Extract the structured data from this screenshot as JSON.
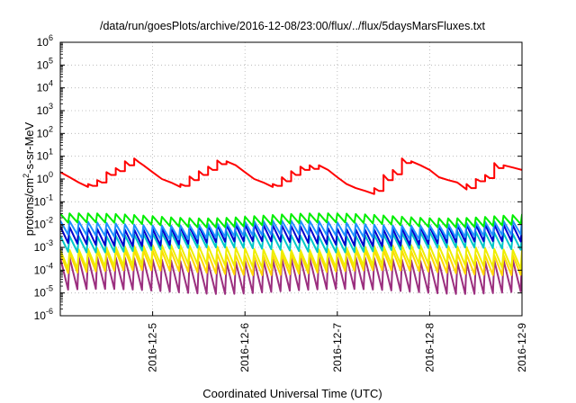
{
  "chart_data": {
    "type": "line",
    "title": "/data/run/goesPlots/archive/2016-12-08/23:00/flux/../flux/5daysMarsFluxes.txt",
    "xlabel": "Coordinated Universal Time (UTC)",
    "ylabel": "protons/cm2-s-sr-MeV",
    "ylabel_base": "protons/cm",
    "ylabel_sup": "2",
    "ylabel_rest": "-s-sr-MeV",
    "x_tick_labels": [
      "2016-12-5",
      "2016-12-6",
      "2016-12-7",
      "2016-12-8",
      "2016-12-9"
    ],
    "x_tick_positions_days": [
      1,
      2,
      3,
      4,
      5
    ],
    "xlim_days": [
      0,
      5
    ],
    "y_scale": "log",
    "ylim": [
      1e-06,
      1000000.0
    ],
    "y_ticks": [
      {
        "base": "10",
        "exp": "-6"
      },
      {
        "base": "10",
        "exp": "-5"
      },
      {
        "base": "10",
        "exp": "-4"
      },
      {
        "base": "10",
        "exp": "-3"
      },
      {
        "base": "10",
        "exp": "-2"
      },
      {
        "base": "10",
        "exp": "-1"
      },
      {
        "base": "10",
        "exp": "0"
      },
      {
        "base": "10",
        "exp": "1"
      },
      {
        "base": "10",
        "exp": "2"
      },
      {
        "base": "10",
        "exp": "3"
      },
      {
        "base": "10",
        "exp": "4"
      },
      {
        "base": "10",
        "exp": "5"
      },
      {
        "base": "10",
        "exp": "6"
      }
    ],
    "grid": true,
    "series": [
      {
        "color": "#ff0000",
        "x_days": [
          0.0,
          0.1,
          0.2,
          0.3,
          0.3,
          0.35,
          0.4,
          0.4,
          0.45,
          0.5,
          0.5,
          0.55,
          0.6,
          0.6,
          0.65,
          0.7,
          0.7,
          0.75,
          0.8,
          0.8,
          0.85,
          0.9,
          1.0,
          1.1,
          1.2,
          1.3,
          1.3,
          1.35,
          1.4,
          1.4,
          1.45,
          1.5,
          1.5,
          1.55,
          1.6,
          1.6,
          1.65,
          1.7,
          1.7,
          1.75,
          1.8,
          1.8,
          1.9,
          2.0,
          2.1,
          2.2,
          2.3,
          2.3,
          2.35,
          2.4,
          2.4,
          2.45,
          2.5,
          2.5,
          2.55,
          2.6,
          2.6,
          2.65,
          2.7,
          2.7,
          2.75,
          2.8,
          2.8,
          2.9,
          3.0,
          3.1,
          3.2,
          3.3,
          3.4,
          3.4,
          3.45,
          3.5,
          3.5,
          3.55,
          3.6,
          3.6,
          3.65,
          3.7,
          3.7,
          3.75,
          3.8,
          3.8,
          3.9,
          4.0,
          4.1,
          4.2,
          4.3,
          4.4,
          4.4,
          4.45,
          4.5,
          4.5,
          4.55,
          4.6,
          4.6,
          4.65,
          4.7,
          4.7,
          4.75,
          4.8,
          4.8,
          4.9,
          5.0
        ],
        "values": [
          2.0,
          1.2,
          0.7,
          0.45,
          0.6,
          0.5,
          0.5,
          0.9,
          0.7,
          0.7,
          2.0,
          1.5,
          1.5,
          3.0,
          2.2,
          2.2,
          6.0,
          4.0,
          4.0,
          8.0,
          5.5,
          4.0,
          2.0,
          1.0,
          0.7,
          0.45,
          0.6,
          0.5,
          0.5,
          1.3,
          0.9,
          0.9,
          2.2,
          1.5,
          1.5,
          3.5,
          2.5,
          2.5,
          6.5,
          4.5,
          4.5,
          6.0,
          4.0,
          2.0,
          1.0,
          0.7,
          0.45,
          0.6,
          0.5,
          0.5,
          1.2,
          0.8,
          0.8,
          2.2,
          1.5,
          1.5,
          3.5,
          2.5,
          2.5,
          4.0,
          2.8,
          2.8,
          4.0,
          2.5,
          1.2,
          0.6,
          0.4,
          0.3,
          0.22,
          0.4,
          0.3,
          0.3,
          1.5,
          0.9,
          0.9,
          2.5,
          1.6,
          1.6,
          8.0,
          5.0,
          5.0,
          6.0,
          4.0,
          2.5,
          1.2,
          0.9,
          0.7,
          0.35,
          0.6,
          0.4,
          0.4,
          1.0,
          0.8,
          0.8,
          1.5,
          1.1,
          1.1,
          5.0,
          3.0,
          3.0,
          4.0,
          3.2,
          2.5
        ]
      },
      {
        "color": "#00ee00",
        "sawtooth": {
          "period_days": 0.1,
          "high": 0.025,
          "low": 0.01
        }
      },
      {
        "color": "#1e90ff",
        "sawtooth": {
          "period_days": 0.1,
          "high": 0.012,
          "low": 0.003
        }
      },
      {
        "color": "#0000cc",
        "sawtooth": {
          "period_days": 0.1,
          "high": 0.008,
          "low": 0.0015
        }
      },
      {
        "color": "#00c8c8",
        "sawtooth": {
          "period_days": 0.1,
          "high": 0.004,
          "low": 0.0008
        }
      },
      {
        "color": "#eeee00",
        "sawtooth": {
          "period_days": 0.1,
          "high": 0.001,
          "low": 0.00015
        }
      },
      {
        "color": "#ffd700",
        "sawtooth": {
          "period_days": 0.1,
          "high": 0.0006,
          "low": 8e-05
        }
      },
      {
        "color": "#9b2f7f",
        "sawtooth": {
          "period_days": 0.1,
          "high": 0.0003,
          "low": 1.2e-05
        }
      }
    ]
  }
}
